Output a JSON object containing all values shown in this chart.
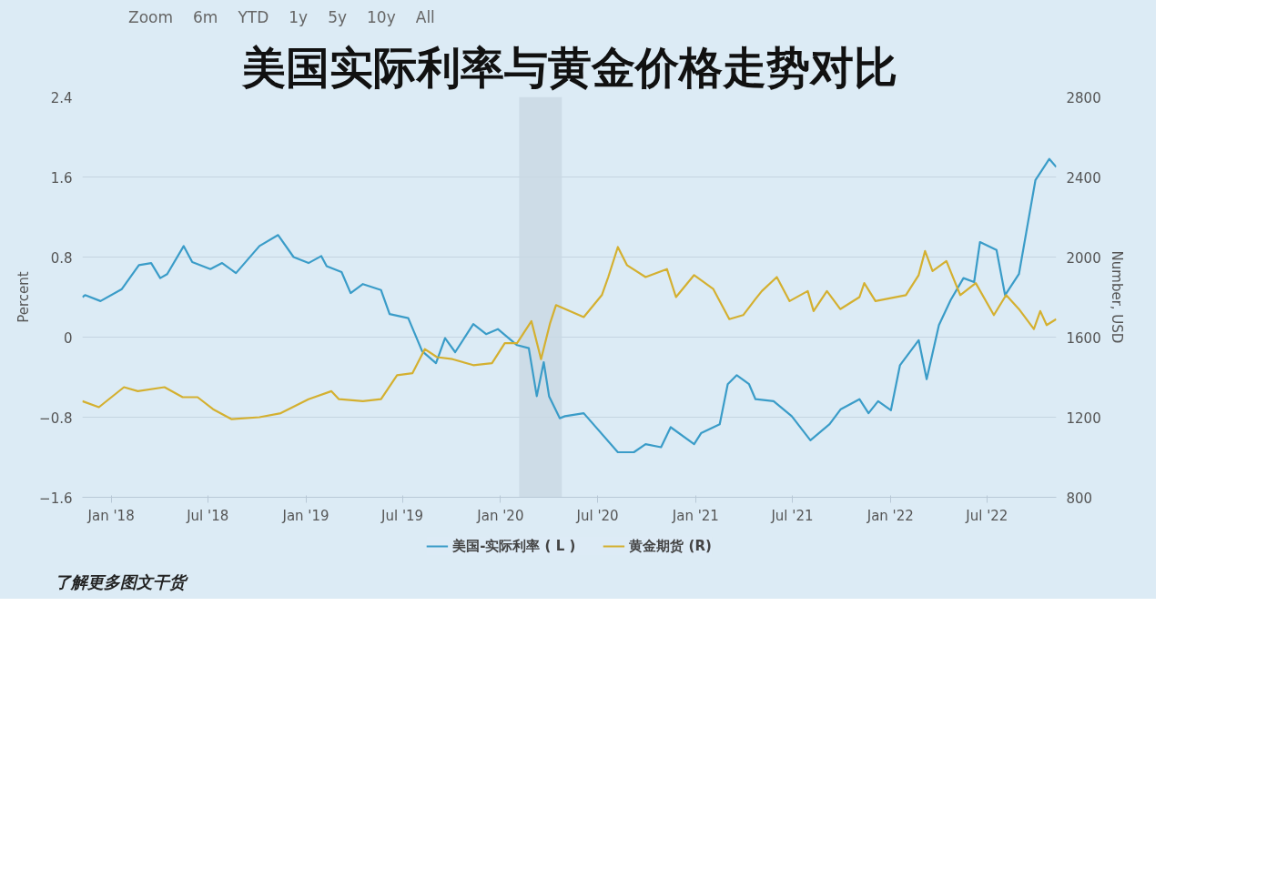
{
  "chart_data": {
    "type": "line",
    "title": "美国实际利率与黄金价格走势对比",
    "xlim": [
      "2017-11-08",
      "2022-11-08"
    ],
    "xticks": [
      {
        "value": "2018-01-01",
        "label": "Jan '18"
      },
      {
        "value": "2018-07-01",
        "label": "Jul '18"
      },
      {
        "value": "2019-01-01",
        "label": "Jan '19"
      },
      {
        "value": "2019-07-01",
        "label": "Jul '19"
      },
      {
        "value": "2020-01-01",
        "label": "Jan '20"
      },
      {
        "value": "2020-07-01",
        "label": "Jul '20"
      },
      {
        "value": "2021-01-01",
        "label": "Jan '21"
      },
      {
        "value": "2021-07-01",
        "label": "Jul '21"
      },
      {
        "value": "2022-01-01",
        "label": "Jan '22"
      },
      {
        "value": "2022-07-01",
        "label": "Jul '22"
      }
    ],
    "ylim": [
      -1.6,
      2.4
    ],
    "yticks": [
      -1.6,
      -0.8,
      0,
      0.8,
      1.6,
      2.4
    ],
    "y2lim": [
      800,
      2800
    ],
    "y2ticks": [
      800,
      1200,
      1600,
      2000,
      2400,
      2800
    ],
    "ylabel": "Percent",
    "y2label": "Number, USD",
    "grid": "y",
    "legend": "bottom",
    "marker": "none",
    "line_style": "solid",
    "bands": [
      {
        "axis": "x",
        "from": "2020-02-05",
        "to": "2020-04-25",
        "color": "#c9d8e4"
      }
    ],
    "annotations": [
      "Zoom",
      "6m",
      "YTD",
      "1y",
      "5y",
      "10y",
      "All",
      "了解更多图文干货"
    ],
    "series": [
      {
        "name": "美国-实际利率 ( L )",
        "color": "#3a9cc8",
        "x": [
          "2017-11-08",
          "2017-11-13",
          "2017-12-12",
          "2018-01-21",
          "2018-02-22",
          "2018-03-17",
          "2018-04-03",
          "2018-04-16",
          "2018-05-17",
          "2018-06-02",
          "2018-07-06",
          "2018-07-28",
          "2018-08-23",
          "2018-10-06",
          "2018-11-10",
          "2018-12-09",
          "2019-01-06",
          "2019-01-30",
          "2019-02-09",
          "2019-03-09",
          "2019-03-26",
          "2019-04-18",
          "2019-05-22",
          "2019-06-07",
          "2019-07-12",
          "2019-08-07",
          "2019-09-02",
          "2019-09-19",
          "2019-10-08",
          "2019-11-11",
          "2019-12-05",
          "2019-12-27",
          "2020-02-01",
          "2020-02-23",
          "2020-03-09",
          "2020-03-22",
          "2020-04-01",
          "2020-04-21",
          "2020-05-01",
          "2020-06-05",
          "2020-08-08",
          "2020-09-07",
          "2020-09-29",
          "2020-10-28",
          "2020-11-15",
          "2020-12-29",
          "2021-01-11",
          "2021-02-15",
          "2021-03-02",
          "2021-03-19",
          "2021-04-11",
          "2021-04-23",
          "2021-05-27",
          "2021-06-30",
          "2021-08-04",
          "2021-09-09",
          "2021-09-30",
          "2021-11-04",
          "2021-11-21",
          "2021-12-09",
          "2022-01-02",
          "2022-01-19",
          "2022-02-23",
          "2022-03-10",
          "2022-04-02",
          "2022-04-24",
          "2022-05-18",
          "2022-06-07",
          "2022-06-18",
          "2022-07-19",
          "2022-08-04",
          "2022-08-30",
          "2022-09-30",
          "2022-10-26",
          "2022-11-08"
        ],
        "values": [
          0.4,
          0.42,
          0.36,
          0.48,
          0.72,
          0.74,
          0.59,
          0.63,
          0.91,
          0.75,
          0.68,
          0.74,
          0.64,
          0.91,
          1.02,
          0.8,
          0.74,
          0.81,
          0.71,
          0.65,
          0.44,
          0.53,
          0.47,
          0.23,
          0.19,
          -0.14,
          -0.26,
          -0.01,
          -0.15,
          0.13,
          0.03,
          0.08,
          -0.08,
          -0.11,
          -0.59,
          -0.25,
          -0.59,
          -0.81,
          -0.79,
          -0.76,
          -1.15,
          -1.15,
          -1.07,
          -1.1,
          -0.9,
          -1.07,
          -0.96,
          -0.87,
          -0.47,
          -0.38,
          -0.47,
          -0.62,
          -0.64,
          -0.79,
          -1.03,
          -0.87,
          -0.72,
          -0.62,
          -0.76,
          -0.64,
          -0.73,
          -0.28,
          -0.03,
          -0.42,
          0.12,
          0.37,
          0.59,
          0.55,
          0.95,
          0.87,
          0.42,
          0.63,
          1.57,
          1.78,
          1.7
        ]
      },
      {
        "name": "黄金期货 (R)",
        "color": "#d4b030",
        "axis": "y2",
        "x": [
          "2017-11-08",
          "2017-12-09",
          "2018-01-25",
          "2018-02-20",
          "2018-04-11",
          "2018-05-15",
          "2018-06-12",
          "2018-07-11",
          "2018-08-15",
          "2018-10-06",
          "2018-11-15",
          "2019-01-06",
          "2019-02-18",
          "2019-03-04",
          "2019-04-18",
          "2019-05-22",
          "2019-06-21",
          "2019-07-20",
          "2019-08-12",
          "2019-09-04",
          "2019-10-03",
          "2019-11-11",
          "2019-12-16",
          "2020-01-09",
          "2020-02-01",
          "2020-02-28",
          "2020-03-17",
          "2020-04-03",
          "2020-04-14",
          "2020-06-05",
          "2020-07-09",
          "2020-07-21",
          "2020-08-08",
          "2020-08-25",
          "2020-09-29",
          "2020-11-08",
          "2020-11-25",
          "2020-12-29",
          "2021-02-03",
          "2021-03-05",
          "2021-03-31",
          "2021-04-23",
          "2021-05-05",
          "2021-06-02",
          "2021-06-26",
          "2021-07-30",
          "2021-08-10",
          "2021-09-04",
          "2021-09-29",
          "2021-11-04",
          "2021-11-13",
          "2021-12-04",
          "2022-01-30",
          "2022-02-23",
          "2022-03-07",
          "2022-03-21",
          "2022-04-16",
          "2022-05-12",
          "2022-06-10",
          "2022-07-14",
          "2022-08-06",
          "2022-08-30",
          "2022-09-27",
          "2022-10-09",
          "2022-10-21",
          "2022-11-08"
        ],
        "values": [
          1280,
          1250,
          1350,
          1330,
          1350,
          1300,
          1300,
          1240,
          1190,
          1200,
          1220,
          1290,
          1330,
          1290,
          1280,
          1290,
          1410,
          1420,
          1540,
          1500,
          1490,
          1460,
          1470,
          1570,
          1570,
          1680,
          1490,
          1670,
          1760,
          1700,
          1810,
          1900,
          2050,
          1960,
          1900,
          1940,
          1800,
          1910,
          1840,
          1690,
          1710,
          1790,
          1830,
          1900,
          1780,
          1830,
          1730,
          1830,
          1740,
          1800,
          1870,
          1780,
          1810,
          1910,
          2030,
          1930,
          1980,
          1810,
          1870,
          1710,
          1810,
          1740,
          1640,
          1730,
          1660,
          1690
        ]
      }
    ]
  }
}
